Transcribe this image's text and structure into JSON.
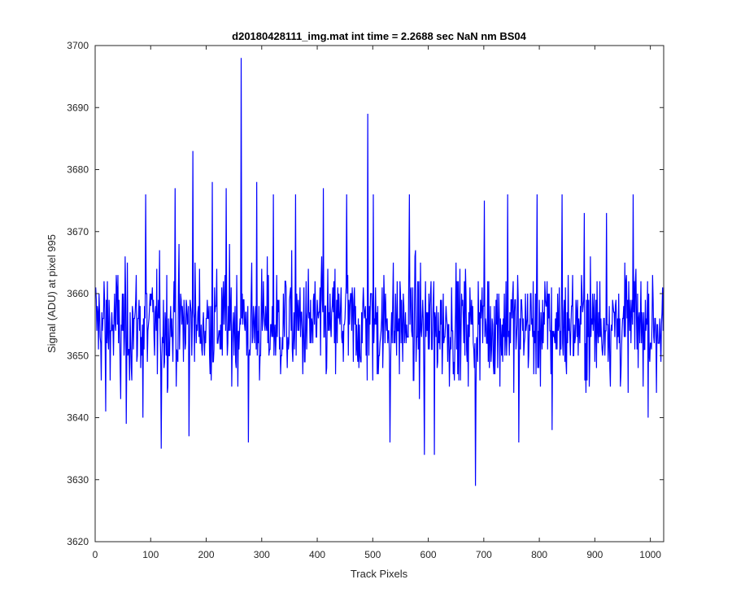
{
  "chart_data": {
    "type": "line",
    "title": "d20180428111_img.mat int time = 2.2688 sec  NaN nm BS04",
    "xlabel": "Track Pixels",
    "ylabel": "Signal (ADU) at pixel 995",
    "xlim": [
      0,
      1024
    ],
    "ylim": [
      3620,
      3700
    ],
    "xticks": [
      0,
      100,
      200,
      300,
      400,
      500,
      600,
      700,
      800,
      900,
      1000
    ],
    "yticks": [
      3620,
      3630,
      3640,
      3650,
      3660,
      3670,
      3680,
      3690,
      3700
    ],
    "grid": false,
    "box": true,
    "series": [
      {
        "color": "#0000ff",
        "n_points": 1024,
        "baseline_mean": 3655,
        "typical_range": [
          3643,
          3668
        ],
        "notable_points": [
          {
            "x": 18,
            "y": 3641
          },
          {
            "x": 45,
            "y": 3643
          },
          {
            "x": 55,
            "y": 3639
          },
          {
            "x": 85,
            "y": 3640
          },
          {
            "x": 90,
            "y": 3676
          },
          {
            "x": 118,
            "y": 3635
          },
          {
            "x": 143,
            "y": 3677
          },
          {
            "x": 168,
            "y": 3637
          },
          {
            "x": 175,
            "y": 3683
          },
          {
            "x": 210,
            "y": 3678
          },
          {
            "x": 235,
            "y": 3677
          },
          {
            "x": 262,
            "y": 3698
          },
          {
            "x": 275,
            "y": 3636
          },
          {
            "x": 290,
            "y": 3678
          },
          {
            "x": 320,
            "y": 3676
          },
          {
            "x": 360,
            "y": 3676
          },
          {
            "x": 410,
            "y": 3677
          },
          {
            "x": 452,
            "y": 3676
          },
          {
            "x": 478,
            "y": 3649
          },
          {
            "x": 490,
            "y": 3689
          },
          {
            "x": 500,
            "y": 3676
          },
          {
            "x": 530,
            "y": 3636
          },
          {
            "x": 565,
            "y": 3676
          },
          {
            "x": 592,
            "y": 3634
          },
          {
            "x": 610,
            "y": 3634
          },
          {
            "x": 684,
            "y": 3629
          },
          {
            "x": 700,
            "y": 3675
          },
          {
            "x": 742,
            "y": 3676
          },
          {
            "x": 762,
            "y": 3636
          },
          {
            "x": 795,
            "y": 3676
          },
          {
            "x": 822,
            "y": 3638
          },
          {
            "x": 840,
            "y": 3676
          },
          {
            "x": 880,
            "y": 3673
          },
          {
            "x": 920,
            "y": 3673
          },
          {
            "x": 968,
            "y": 3676
          },
          {
            "x": 1010,
            "y": 3644
          }
        ]
      }
    ]
  }
}
